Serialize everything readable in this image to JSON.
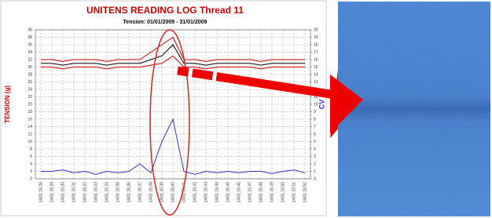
{
  "chart_data": {
    "type": "line",
    "title": "UNITENS READING LOG Thread 11",
    "subtitle": "Tension: 01/01/2009 - 31/01/2009",
    "y_label": "TENSION (g)",
    "y2_label": "CV",
    "categories": [
      "14/01 15:28",
      "14/01 15:29",
      "14/01 15:30",
      "14/01 15:31",
      "14/01 15:32",
      "14/01 15:33",
      "14/01 15:34",
      "14/01 15:35",
      "14/01 15:36",
      "14/01 15:37",
      "14/01 15:38",
      "14/01 15:39",
      "14/01 15:40",
      "14/01 15:41",
      "14/01 15:42",
      "14/01 15:43",
      "14/01 15:44",
      "14/01 15:45",
      "14/01 15:46",
      "14/01 15:47",
      "14/01 15:48",
      "14/01 15:49",
      "14/01 15:50",
      "14/01 15:51",
      "14/01 15:52"
    ],
    "series": [
      {
        "color": "#cc0000",
        "values": [
          32,
          32,
          31.5,
          32,
          32,
          32,
          31.5,
          32,
          32,
          32,
          34,
          36,
          38,
          32,
          32,
          31.5,
          32,
          32,
          32,
          32,
          31.5,
          32,
          32,
          32,
          32
        ]
      },
      {
        "color": "#000000",
        "values": [
          31,
          31,
          30.5,
          31,
          31,
          31,
          30.5,
          31,
          31,
          31,
          32,
          33,
          36,
          31,
          31,
          30.5,
          31,
          31,
          31,
          31,
          30.5,
          31,
          31,
          31,
          31
        ]
      },
      {
        "color": "#cc0000",
        "values": [
          30,
          30,
          29.5,
          30,
          30,
          30,
          29.5,
          30,
          30,
          30,
          30.5,
          31,
          33,
          30,
          30,
          29.5,
          30,
          30,
          30,
          30,
          29.5,
          30,
          30,
          30,
          30
        ]
      },
      {
        "color": "#3333cc",
        "axis": "y2",
        "values": [
          1,
          1,
          1.2,
          0.8,
          1,
          0.6,
          1,
          0.8,
          1,
          2,
          0.8,
          5,
          8,
          1,
          0.6,
          1,
          0.8,
          1,
          0.8,
          1,
          1,
          0.7,
          1,
          1.2,
          0.8
        ]
      }
    ],
    "ylim": [
      0,
      40
    ],
    "yticks": [
      0,
      2,
      4,
      6,
      8,
      10,
      12,
      14,
      16,
      18,
      20,
      22,
      24,
      26,
      28,
      30,
      32,
      34,
      36,
      38,
      40
    ],
    "y2lim": [
      0,
      20
    ],
    "y2ticks": [
      0,
      1,
      2,
      3,
      4,
      5,
      6,
      7,
      8,
      9,
      10,
      11,
      12,
      13,
      14,
      15,
      16,
      17,
      18,
      19,
      20
    ],
    "grid": true
  }
}
